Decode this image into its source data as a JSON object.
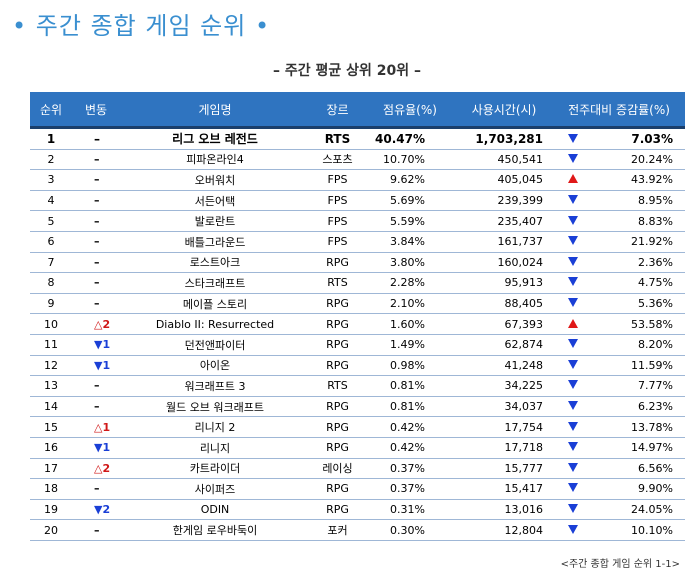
{
  "title": "• 주간 종합 게임 순위 •",
  "subtitle": "– 주간 평균 상위 20위 –",
  "columns": [
    "순위",
    "변동",
    "게임명",
    "장르",
    "점유율(%)",
    "사용시간(시)",
    "전주대비 증감률(%)"
  ],
  "caption": "<주간 종합 게임 순위 1-1>",
  "colors": {
    "header_bg": "#2f74c0",
    "title": "#3a8fd0",
    "up": "#e01818",
    "down": "#1a3fd6"
  },
  "rows": [
    {
      "rank": "1",
      "move": "–",
      "move_dir": "none",
      "name": "리그 오브 레전드",
      "genre": "RTS",
      "share": "40.47%",
      "hours": "1,703,281",
      "trend": "down",
      "change": "7.03%"
    },
    {
      "rank": "2",
      "move": "–",
      "move_dir": "none",
      "name": "피파온라인4",
      "genre": "스포츠",
      "share": "10.70%",
      "hours": "450,541",
      "trend": "down",
      "change": "20.24%"
    },
    {
      "rank": "3",
      "move": "–",
      "move_dir": "none",
      "name": "오버워치",
      "genre": "FPS",
      "share": "9.62%",
      "hours": "405,045",
      "trend": "up",
      "change": "43.92%"
    },
    {
      "rank": "4",
      "move": "–",
      "move_dir": "none",
      "name": "서든어택",
      "genre": "FPS",
      "share": "5.69%",
      "hours": "239,399",
      "trend": "down",
      "change": "8.95%"
    },
    {
      "rank": "5",
      "move": "–",
      "move_dir": "none",
      "name": "발로란트",
      "genre": "FPS",
      "share": "5.59%",
      "hours": "235,407",
      "trend": "down",
      "change": "8.83%"
    },
    {
      "rank": "6",
      "move": "–",
      "move_dir": "none",
      "name": "배틀그라운드",
      "genre": "FPS",
      "share": "3.84%",
      "hours": "161,737",
      "trend": "down",
      "change": "21.92%"
    },
    {
      "rank": "7",
      "move": "–",
      "move_dir": "none",
      "name": "로스트아크",
      "genre": "RPG",
      "share": "3.80%",
      "hours": "160,024",
      "trend": "down",
      "change": "2.36%"
    },
    {
      "rank": "8",
      "move": "–",
      "move_dir": "none",
      "name": "스타크래프트",
      "genre": "RTS",
      "share": "2.28%",
      "hours": "95,913",
      "trend": "down",
      "change": "4.75%"
    },
    {
      "rank": "9",
      "move": "–",
      "move_dir": "none",
      "name": "메이플 스토리",
      "genre": "RPG",
      "share": "2.10%",
      "hours": "88,405",
      "trend": "down",
      "change": "5.36%"
    },
    {
      "rank": "10",
      "move": "△2",
      "move_dir": "up",
      "name": "Diablo II: Resurrected",
      "genre": "RPG",
      "share": "1.60%",
      "hours": "67,393",
      "trend": "up",
      "change": "53.58%"
    },
    {
      "rank": "11",
      "move": "▼1",
      "move_dir": "down",
      "name": "던전앤파이터",
      "genre": "RPG",
      "share": "1.49%",
      "hours": "62,874",
      "trend": "down",
      "change": "8.20%"
    },
    {
      "rank": "12",
      "move": "▼1",
      "move_dir": "down",
      "name": "아이온",
      "genre": "RPG",
      "share": "0.98%",
      "hours": "41,248",
      "trend": "down",
      "change": "11.59%"
    },
    {
      "rank": "13",
      "move": "–",
      "move_dir": "none",
      "name": "워크래프트 3",
      "genre": "RTS",
      "share": "0.81%",
      "hours": "34,225",
      "trend": "down",
      "change": "7.77%"
    },
    {
      "rank": "14",
      "move": "–",
      "move_dir": "none",
      "name": "월드 오브 워크래프트",
      "genre": "RPG",
      "share": "0.81%",
      "hours": "34,037",
      "trend": "down",
      "change": "6.23%"
    },
    {
      "rank": "15",
      "move": "△1",
      "move_dir": "up",
      "name": "리니지 2",
      "genre": "RPG",
      "share": "0.42%",
      "hours": "17,754",
      "trend": "down",
      "change": "13.78%"
    },
    {
      "rank": "16",
      "move": "▼1",
      "move_dir": "down",
      "name": "리니지",
      "genre": "RPG",
      "share": "0.42%",
      "hours": "17,718",
      "trend": "down",
      "change": "14.97%"
    },
    {
      "rank": "17",
      "move": "△2",
      "move_dir": "up",
      "name": "카트라이더",
      "genre": "레이싱",
      "share": "0.37%",
      "hours": "15,777",
      "trend": "down",
      "change": "6.56%"
    },
    {
      "rank": "18",
      "move": "–",
      "move_dir": "none",
      "name": "사이퍼즈",
      "genre": "RPG",
      "share": "0.37%",
      "hours": "15,417",
      "trend": "down",
      "change": "9.90%"
    },
    {
      "rank": "19",
      "move": "▼2",
      "move_dir": "down",
      "name": "ODIN",
      "genre": "RPG",
      "share": "0.31%",
      "hours": "13,016",
      "trend": "down",
      "change": "24.05%"
    },
    {
      "rank": "20",
      "move": "–",
      "move_dir": "none",
      "name": "한게임 로우바둑이",
      "genre": "포커",
      "share": "0.30%",
      "hours": "12,804",
      "trend": "down",
      "change": "10.10%"
    }
  ]
}
